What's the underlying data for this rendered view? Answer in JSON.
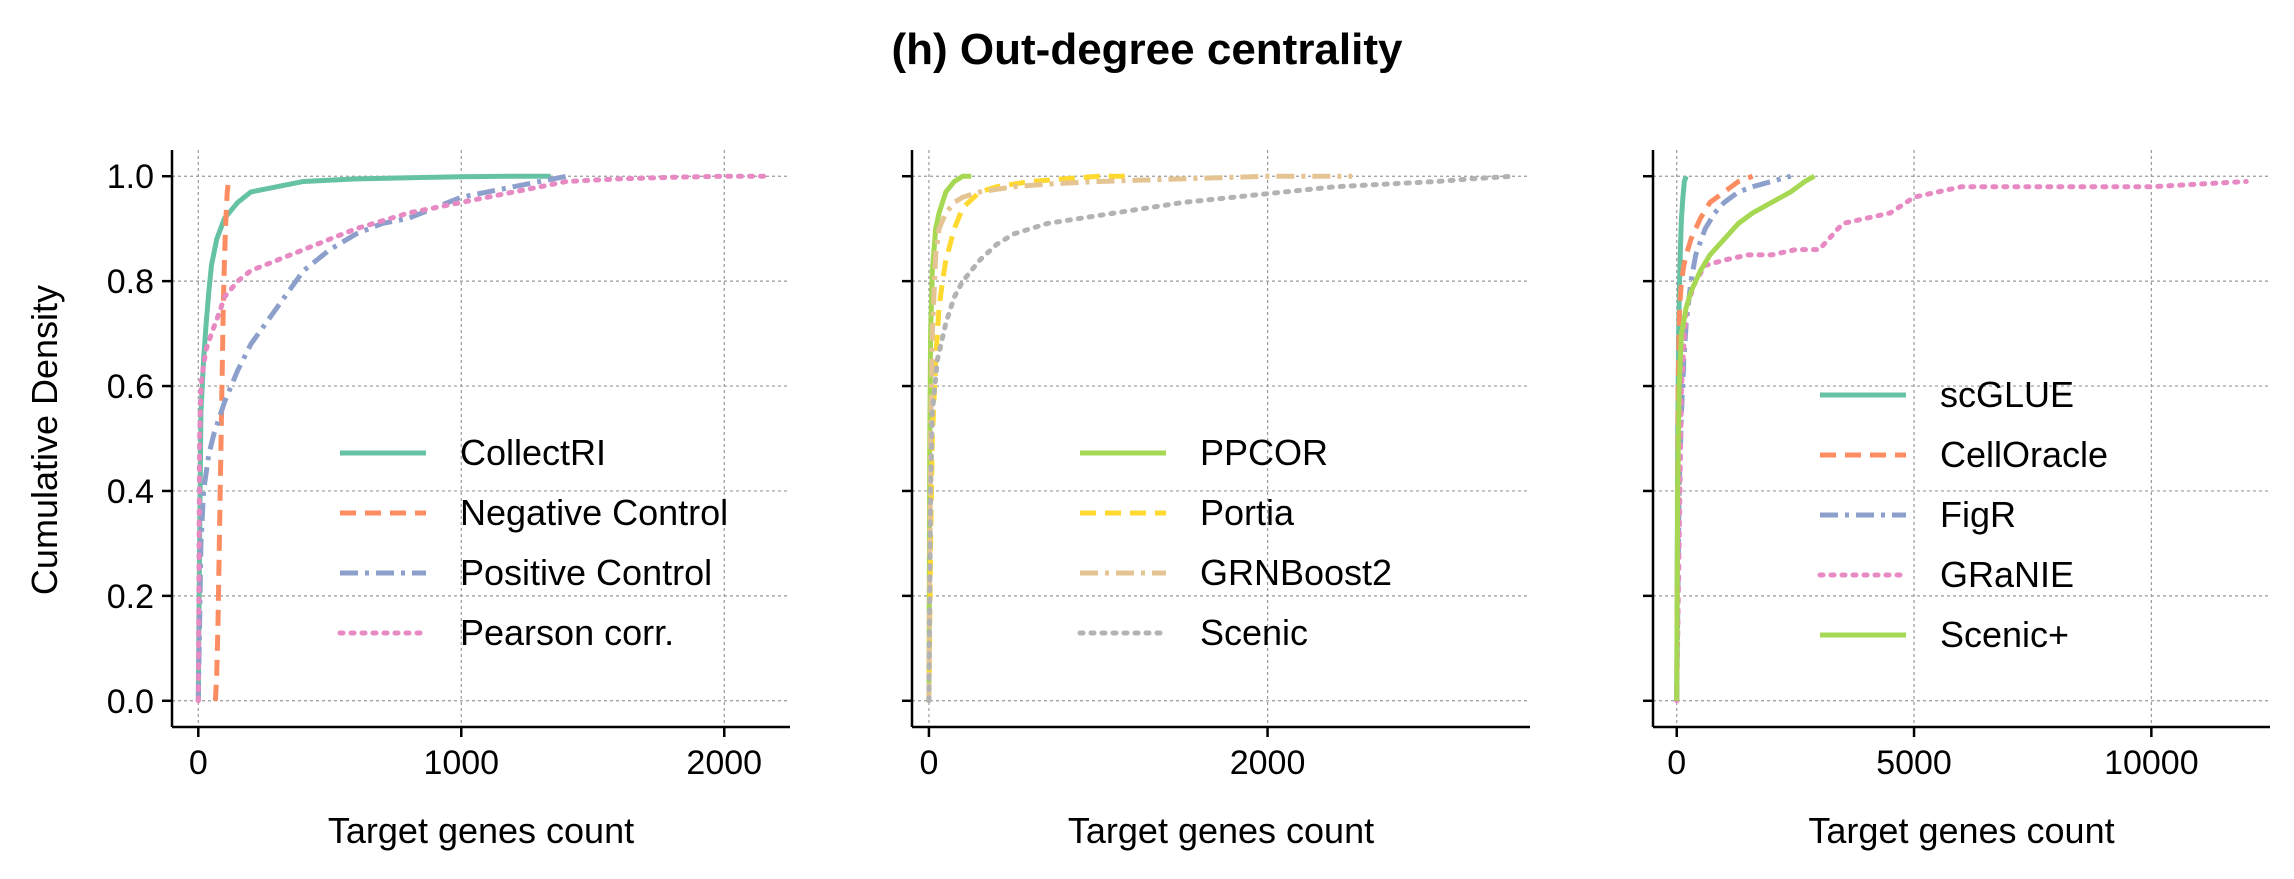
{
  "figure": {
    "title": "(h) Out-degree centrality",
    "ylabel": "Cumulative Density"
  },
  "chart_data": [
    {
      "type": "line",
      "xlabel": "Target genes count",
      "ylabel": "Cumulative Density",
      "xlim": [
        -100,
        2250
      ],
      "ylim": [
        -0.05,
        1.05
      ],
      "xticks": [
        0,
        1000,
        2000
      ],
      "xtick_labels": [
        "0",
        "1000",
        "2000"
      ],
      "yticks": [
        0.0,
        0.2,
        0.4,
        0.6,
        0.8,
        1.0
      ],
      "ytick_labels": [
        "0.0",
        "0.2",
        "0.4",
        "0.6",
        "0.8",
        "1.0"
      ],
      "grid": true,
      "legend_position": "lower-right",
      "series": [
        {
          "name": "CollectRI",
          "color": "#66c2a5",
          "dash": "solid",
          "x": [
            0,
            5,
            10,
            20,
            30,
            40,
            50,
            70,
            100,
            150,
            200,
            300,
            400,
            600,
            800,
            1000,
            1200,
            1340
          ],
          "y": [
            0.0,
            0.3,
            0.55,
            0.65,
            0.72,
            0.78,
            0.83,
            0.88,
            0.92,
            0.95,
            0.97,
            0.98,
            0.99,
            0.995,
            0.997,
            0.999,
            1.0,
            1.0
          ]
        },
        {
          "name": "Negative Control",
          "color": "#fc8d62",
          "dash": "dashed",
          "x": [
            65,
            70,
            75,
            80,
            85,
            90,
            95,
            100,
            105,
            110,
            115,
            120
          ],
          "y": [
            0.0,
            0.05,
            0.15,
            0.3,
            0.45,
            0.6,
            0.75,
            0.85,
            0.92,
            0.97,
            0.99,
            1.0
          ]
        },
        {
          "name": "Positive Control",
          "color": "#8da0cb",
          "dash": "dashdot",
          "x": [
            0,
            10,
            20,
            40,
            60,
            80,
            100,
            150,
            200,
            300,
            400,
            500,
            600,
            700,
            800,
            900,
            1000,
            1100,
            1200,
            1300,
            1400
          ],
          "y": [
            0.0,
            0.3,
            0.4,
            0.47,
            0.51,
            0.54,
            0.57,
            0.63,
            0.68,
            0.75,
            0.82,
            0.86,
            0.89,
            0.91,
            0.92,
            0.94,
            0.96,
            0.97,
            0.98,
            0.99,
            1.0
          ]
        },
        {
          "name": "Pearson corr.",
          "color": "#e78ac3",
          "dash": "dotted",
          "x": [
            0,
            5,
            10,
            20,
            30,
            50,
            80,
            100,
            150,
            200,
            300,
            400,
            500,
            600,
            800,
            1000,
            1200,
            1400,
            1600,
            1800,
            2000,
            2150
          ],
          "y": [
            0.0,
            0.5,
            0.6,
            0.64,
            0.67,
            0.7,
            0.74,
            0.77,
            0.8,
            0.82,
            0.84,
            0.86,
            0.88,
            0.9,
            0.93,
            0.95,
            0.97,
            0.99,
            0.995,
            0.998,
            1.0,
            1.0
          ]
        }
      ]
    },
    {
      "type": "line",
      "xlabel": "Target genes count",
      "xlim": [
        -100,
        3550
      ],
      "ylim": [
        -0.05,
        1.05
      ],
      "xticks": [
        0,
        2000
      ],
      "xtick_labels": [
        "0",
        "2000"
      ],
      "yticks": [
        0.0,
        0.2,
        0.4,
        0.6,
        0.8,
        1.0
      ],
      "grid": true,
      "legend_position": "lower-right",
      "series": [
        {
          "name": "PPCOR",
          "color": "#a6d854",
          "dash": "solid",
          "x": [
            0,
            3,
            5,
            10,
            20,
            40,
            60,
            80,
            100,
            150,
            200,
            250
          ],
          "y": [
            0.0,
            0.3,
            0.5,
            0.7,
            0.82,
            0.9,
            0.93,
            0.95,
            0.97,
            0.99,
            1.0,
            1.0
          ]
        },
        {
          "name": "Portia",
          "color": "#ffd92f",
          "dash": "dashed",
          "x": [
            0,
            10,
            20,
            40,
            60,
            80,
            100,
            150,
            200,
            300,
            400,
            600,
            800,
            1000,
            1200
          ],
          "y": [
            0.0,
            0.3,
            0.5,
            0.65,
            0.75,
            0.8,
            0.84,
            0.9,
            0.94,
            0.97,
            0.98,
            0.99,
            0.995,
            1.0,
            1.0
          ]
        },
        {
          "name": "GRNBoost2",
          "color": "#e5c494",
          "dash": "dashdot",
          "x": [
            0,
            10,
            20,
            40,
            60,
            100,
            150,
            200,
            300,
            500,
            700,
            1000,
            1500,
            2000,
            2500
          ],
          "y": [
            0.0,
            0.5,
            0.7,
            0.85,
            0.9,
            0.93,
            0.95,
            0.96,
            0.97,
            0.98,
            0.985,
            0.99,
            0.995,
            1.0,
            1.0
          ]
        },
        {
          "name": "Scenic",
          "color": "#b3b3b3",
          "dash": "dotted",
          "x": [
            0,
            10,
            20,
            50,
            100,
            150,
            200,
            300,
            400,
            500,
            700,
            900,
            1100,
            1300,
            1500,
            1800,
            2100,
            2400,
            2700,
            3000,
            3200,
            3450
          ],
          "y": [
            0.0,
            0.4,
            0.55,
            0.65,
            0.72,
            0.77,
            0.8,
            0.84,
            0.87,
            0.89,
            0.91,
            0.92,
            0.93,
            0.94,
            0.95,
            0.96,
            0.97,
            0.98,
            0.985,
            0.99,
            0.995,
            1.0
          ]
        }
      ]
    },
    {
      "type": "line",
      "xlabel": "Target genes count",
      "xlim": [
        -500,
        12500
      ],
      "ylim": [
        -0.05,
        1.05
      ],
      "xticks": [
        0,
        5000,
        10000
      ],
      "xtick_labels": [
        "0",
        "5000",
        "10000"
      ],
      "yticks": [
        0.0,
        0.2,
        0.4,
        0.6,
        0.8,
        1.0
      ],
      "grid": true,
      "legend_position": "center-right",
      "series": [
        {
          "name": "scGLUE",
          "color": "#66c2a5",
          "dash": "solid",
          "x": [
            0,
            20,
            40,
            60,
            80,
            100,
            130,
            160,
            200
          ],
          "y": [
            0.0,
            0.5,
            0.7,
            0.8,
            0.87,
            0.92,
            0.96,
            0.99,
            1.0
          ]
        },
        {
          "name": "CellOracle",
          "color": "#fc8d62",
          "dash": "dashed",
          "x": [
            0,
            30,
            60,
            100,
            150,
            200,
            300,
            500,
            700,
            1000,
            1300,
            1600
          ],
          "y": [
            0.0,
            0.6,
            0.75,
            0.8,
            0.83,
            0.85,
            0.88,
            0.92,
            0.95,
            0.97,
            0.99,
            1.0
          ]
        },
        {
          "name": "FigR",
          "color": "#8da0cb",
          "dash": "dashdot",
          "x": [
            0,
            50,
            100,
            150,
            200,
            300,
            400,
            600,
            800,
            1000,
            1300,
            1600,
            2000,
            2400
          ],
          "y": [
            0.0,
            0.4,
            0.55,
            0.65,
            0.72,
            0.8,
            0.85,
            0.9,
            0.93,
            0.95,
            0.97,
            0.98,
            0.99,
            1.0
          ]
        },
        {
          "name": "GRaNIE",
          "color": "#e78ac3",
          "dash": "dotted",
          "x": [
            0,
            100,
            200,
            400,
            600,
            1000,
            1500,
            2000,
            2500,
            3000,
            3500,
            4000,
            4500,
            5000,
            5500,
            6000,
            7000,
            8000,
            10000,
            12000
          ],
          "y": [
            0.0,
            0.6,
            0.75,
            0.8,
            0.83,
            0.84,
            0.85,
            0.85,
            0.86,
            0.86,
            0.91,
            0.92,
            0.93,
            0.96,
            0.97,
            0.98,
            0.98,
            0.98,
            0.98,
            0.99
          ]
        },
        {
          "name": "Scenic+",
          "color": "#a6d854",
          "dash": "solid",
          "x": [
            0,
            20,
            50,
            100,
            200,
            300,
            500,
            700,
            1000,
            1300,
            1600,
            2000,
            2400,
            2700,
            2900
          ],
          "y": [
            0.0,
            0.4,
            0.6,
            0.7,
            0.75,
            0.78,
            0.82,
            0.85,
            0.88,
            0.91,
            0.93,
            0.95,
            0.97,
            0.99,
            1.0
          ]
        }
      ]
    }
  ]
}
